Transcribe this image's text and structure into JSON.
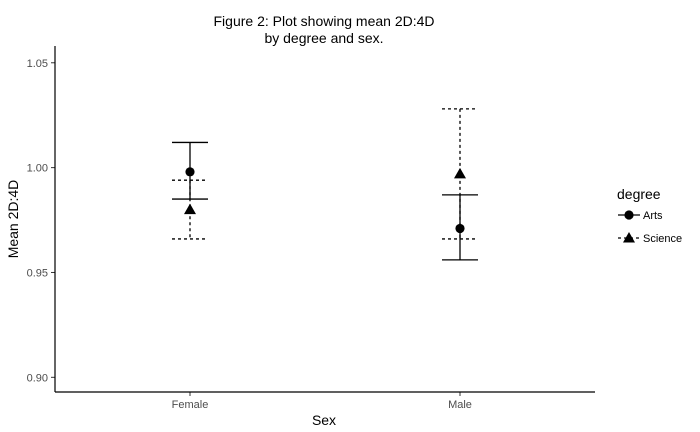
{
  "chart_data": {
    "type": "scatter",
    "title_lines": [
      "Figure 2: Plot showing mean 2D:4D",
      "by degree and sex."
    ],
    "xlabel": "Sex",
    "ylabel": "Mean 2D:4D",
    "categories": [
      "Female",
      "Male"
    ],
    "ylim": [
      0.893,
      1.058
    ],
    "yticks": [
      0.9,
      0.95,
      1.0,
      1.05
    ],
    "ytick_labels": [
      "0.90",
      "0.95",
      "1.00",
      "1.05"
    ],
    "grid": false,
    "legend": {
      "title": "degree",
      "placement": "right"
    },
    "series": [
      {
        "name": "Arts",
        "marker": "circle",
        "linestyle": "solid",
        "points": [
          {
            "x": "Female",
            "y": 0.998,
            "lower": 0.985,
            "upper": 1.012
          },
          {
            "x": "Male",
            "y": 0.971,
            "lower": 0.956,
            "upper": 0.987
          }
        ]
      },
      {
        "name": "Science",
        "marker": "triangle",
        "linestyle": "dashed",
        "points": [
          {
            "x": "Female",
            "y": 0.98,
            "lower": 0.966,
            "upper": 0.994
          },
          {
            "x": "Male",
            "y": 0.997,
            "lower": 0.966,
            "upper": 1.028
          }
        ]
      }
    ]
  }
}
